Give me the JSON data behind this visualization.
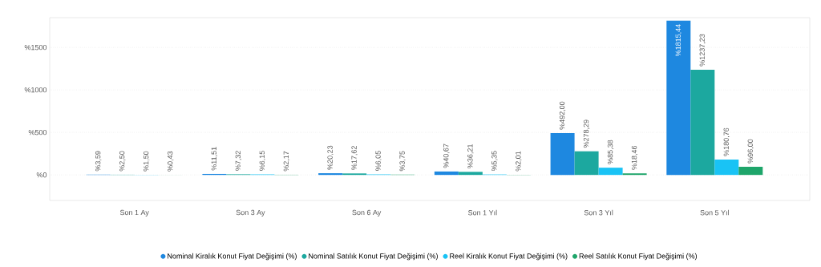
{
  "chart_data": {
    "type": "bar",
    "categories": [
      "Son 1 Ay",
      "Son 3 Ay",
      "Son 6 Ay",
      "Son 1 Yıl",
      "Son 3 Yıl",
      "Son 5 Yıl"
    ],
    "series": [
      {
        "name": "Nominal Kiralık Konut Fiyat Değişimi (%)",
        "color": "#1e88e0",
        "values": [
          3.59,
          11.51,
          20.23,
          40.67,
          492.0,
          1815.44
        ],
        "value_labels": [
          "%3,59",
          "%11,51",
          "%20,23",
          "%40,67",
          "%492,00",
          "%1815,44"
        ]
      },
      {
        "name": "Nominal Satılık Konut Fiyat Değişimi (%)",
        "color": "#1ca89f",
        "values": [
          2.5,
          7.32,
          17.62,
          36.21,
          278.29,
          1237.23
        ],
        "value_labels": [
          "%2,50",
          "%7,32",
          "%17,62",
          "%36,21",
          "%278,29",
          "%1237,23"
        ]
      },
      {
        "name": "Reel Kiralık Konut Fiyat Değişimi (%)",
        "color": "#19c3f5",
        "values": [
          1.5,
          6.15,
          6.05,
          5.35,
          85.38,
          180.76
        ],
        "value_labels": [
          "%1,50",
          "%6,15",
          "%6,05",
          "%5,35",
          "%85,38",
          "%180,76"
        ]
      },
      {
        "name": "Reel Satılık Konut Fiyat Değişimi (%)",
        "color": "#1ea56a",
        "values": [
          0.43,
          2.17,
          3.75,
          2.01,
          18.46,
          96.0
        ],
        "value_labels": [
          "%0,43",
          "%2,17",
          "%3,75",
          "%2,01",
          "%18,46",
          "%96,00"
        ]
      }
    ],
    "ylim": [
      -300,
      1850
    ],
    "yticks": [
      {
        "value": 0,
        "label": "%0"
      },
      {
        "value": 500,
        "label": "%500"
      },
      {
        "value": 1000,
        "label": "%1000"
      },
      {
        "value": 1500,
        "label": "%1500"
      }
    ],
    "grid": "y",
    "legend": "bottom",
    "marker": "circle"
  }
}
